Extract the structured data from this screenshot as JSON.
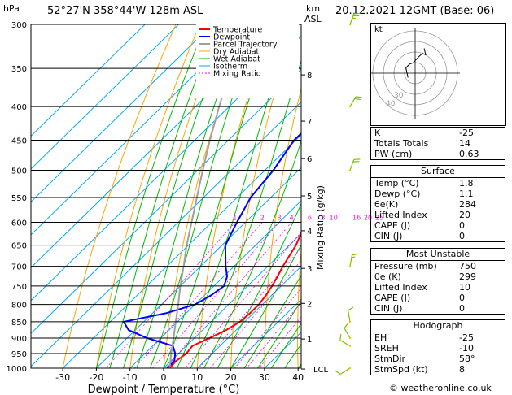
{
  "header": {
    "location": "52°27'N  358°44'W  128m  ASL",
    "datetime": "20.12.2021  12GMT  (Base: 06)",
    "hpa_unit": "hPa",
    "km_unit": "km",
    "asl_unit": "ASL"
  },
  "chart_data": {
    "type": "line",
    "title": "",
    "xlabel": "Dewpoint / Temperature (°C)",
    "ylabel": "hPa",
    "xlim": [
      -35,
      40
    ],
    "ylim": [
      1000,
      300
    ],
    "pressure_ticks": [
      "300",
      "350",
      "400",
      "450",
      "500",
      "550",
      "600",
      "650",
      "700",
      "750",
      "800",
      "850",
      "900",
      "950",
      "1000"
    ],
    "x_ticks": [
      "-30",
      "-20",
      "-10",
      "0",
      "10",
      "20",
      "30",
      "40"
    ],
    "km_ticks": [
      {
        "label": "8",
        "p": 358
      },
      {
        "label": "7",
        "p": 421
      },
      {
        "label": "6",
        "p": 480
      },
      {
        "label": "5",
        "p": 547
      },
      {
        "label": "4",
        "p": 618
      },
      {
        "label": "3",
        "p": 705
      },
      {
        "label": "2",
        "p": 797
      },
      {
        "label": "1",
        "p": 903
      },
      {
        "label": "LCL",
        "p": 1003
      }
    ],
    "mixing_ratio_label": "Mixing Ratio (g/kg)",
    "mixing_ratio_labels": [
      "1",
      "2",
      "3",
      "4",
      "6",
      "8",
      "10",
      "16",
      "20",
      "25"
    ],
    "legend": [
      "Temperature",
      "Dewpoint",
      "Parcel Trajectory",
      "Dry Adiabat",
      "Wet Adiabat",
      "Isotherm",
      "Mixing Ratio"
    ],
    "legend_position": "top-right",
    "grid": true,
    "series": [
      {
        "name": "Temperature",
        "points": [
          [
            1000,
            1.8
          ],
          [
            975,
            1.5
          ],
          [
            950,
            2.3
          ],
          [
            925,
            1.8
          ],
          [
            900,
            4.5
          ],
          [
            875,
            7.0
          ],
          [
            850,
            8.6
          ],
          [
            825,
            9.0
          ],
          [
            800,
            9.0
          ],
          [
            775,
            8.3
          ],
          [
            750,
            7.3
          ],
          [
            725,
            6.0
          ],
          [
            700,
            4.5
          ],
          [
            650,
            2.0
          ],
          [
            600,
            -2.0
          ],
          [
            550,
            -6.5
          ],
          [
            500,
            -11.0
          ],
          [
            450,
            -17.0
          ],
          [
            400,
            -24.5
          ],
          [
            350,
            -32.0
          ],
          [
            300,
            -39.0
          ]
        ]
      },
      {
        "name": "Dewpoint",
        "points": [
          [
            1000,
            1.1
          ],
          [
            975,
            1.0
          ],
          [
            950,
            -1.0
          ],
          [
            925,
            -4.0
          ],
          [
            900,
            -14.0
          ],
          [
            875,
            -22.0
          ],
          [
            850,
            -26.0
          ],
          [
            825,
            -16.0
          ],
          [
            800,
            -10.0
          ],
          [
            775,
            -8.0
          ],
          [
            750,
            -7.0
          ],
          [
            725,
            -9.0
          ],
          [
            700,
            -12.5
          ],
          [
            650,
            -19.0
          ],
          [
            600,
            -22.5
          ],
          [
            550,
            -26.0
          ],
          [
            500,
            -27.5
          ],
          [
            450,
            -30.5
          ],
          [
            400,
            -30.0
          ],
          [
            350,
            -33.5
          ],
          [
            300,
            -39.5
          ]
        ]
      },
      {
        "name": "Parcel Trajectory",
        "points": [
          [
            1000,
            1.8
          ],
          [
            950,
            -2.2
          ],
          [
            900,
            -6.2
          ],
          [
            850,
            -10.5
          ],
          [
            800,
            -15.0
          ],
          [
            750,
            -20.0
          ],
          [
            700,
            -25.0
          ],
          [
            650,
            -30.5
          ],
          [
            600,
            -36.0
          ],
          [
            550,
            -42.0
          ],
          [
            500,
            -48.5
          ],
          [
            450,
            -55.5
          ],
          [
            400,
            -63.0
          ],
          [
            350,
            -71.0
          ],
          [
            300,
            -80.0
          ]
        ]
      }
    ],
    "hodograph": {
      "ring_labels": [
        "40",
        "30"
      ],
      "label": "kt"
    },
    "wind_barbs": [
      {
        "p": 300,
        "speed_kt": 25,
        "dir": 200
      },
      {
        "p": 400,
        "speed_kt": 20,
        "dir": 210
      },
      {
        "p": 500,
        "speed_kt": 20,
        "dir": 200
      },
      {
        "p": 700,
        "speed_kt": 15,
        "dir": 190
      },
      {
        "p": 850,
        "speed_kt": 10,
        "dir": 170
      },
      {
        "p": 900,
        "speed_kt": 10,
        "dir": 150
      },
      {
        "p": 925,
        "speed_kt": 10,
        "dir": 120
      },
      {
        "p": 1000,
        "speed_kt": 8,
        "dir": 58
      }
    ]
  },
  "indices": {
    "rows": [
      {
        "label": "K",
        "value": "-25"
      },
      {
        "label": "Totals Totals",
        "value": "14"
      },
      {
        "label": "PW (cm)",
        "value": "0.63"
      }
    ]
  },
  "surface": {
    "title": "Surface",
    "rows": [
      {
        "label": "Temp (°C)",
        "value": "1.8"
      },
      {
        "label": "Dewp (°C)",
        "value": "1.1"
      },
      {
        "label": "θe(K)",
        "value": "284"
      },
      {
        "label": "Lifted Index",
        "value": "20"
      },
      {
        "label": "CAPE (J)",
        "value": "0"
      },
      {
        "label": "CIN (J)",
        "value": "0"
      }
    ]
  },
  "unstable": {
    "title": "Most Unstable",
    "rows": [
      {
        "label": "Pressure (mb)",
        "value": "750"
      },
      {
        "label": "θe (K)",
        "value": "299"
      },
      {
        "label": "Lifted Index",
        "value": "10"
      },
      {
        "label": "CAPE (J)",
        "value": "0"
      },
      {
        "label": "CIN (J)",
        "value": "0"
      }
    ]
  },
  "hodo_table": {
    "title": "Hodograph",
    "rows": [
      {
        "label": "EH",
        "value": "-25"
      },
      {
        "label": "SREH",
        "value": "-10"
      },
      {
        "label": "StmDir",
        "value": "58°"
      },
      {
        "label": "StmSpd (kt)",
        "value": "8"
      }
    ]
  },
  "footer": "© weatheronline.co.uk",
  "colors": {
    "temperature": "#ff0000",
    "dewpoint": "#0000ff",
    "parcel": "#a0a0a0",
    "dry_adiabat": "#ffa500",
    "wet_adiabat": "#00bb00",
    "isotherm": "#00aaff",
    "mixing_ratio": "#ff00ff"
  }
}
